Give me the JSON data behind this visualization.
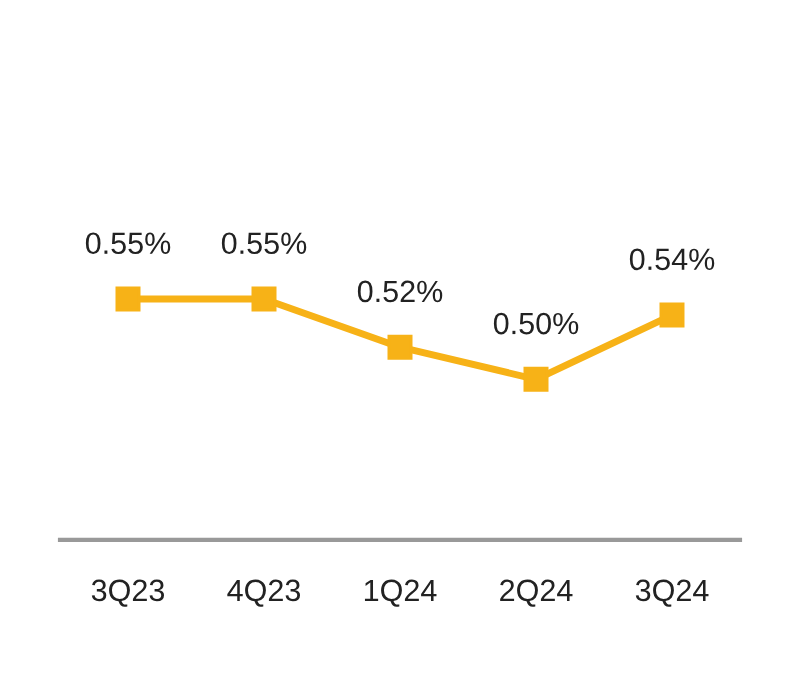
{
  "chart_data": {
    "type": "line",
    "categories": [
      "3Q23",
      "4Q23",
      "1Q24",
      "2Q24",
      "3Q24"
    ],
    "series": [
      {
        "color": "#f7b217",
        "values": [
          0.55,
          0.55,
          0.52,
          0.5,
          0.54
        ],
        "value_labels": [
          "0.55%",
          "0.55%",
          "0.52%",
          "0.50%",
          "0.54%"
        ]
      }
    ],
    "tick_labels": "x",
    "marker": "square",
    "line_style": "solid",
    "grid": false,
    "legend": false
  }
}
